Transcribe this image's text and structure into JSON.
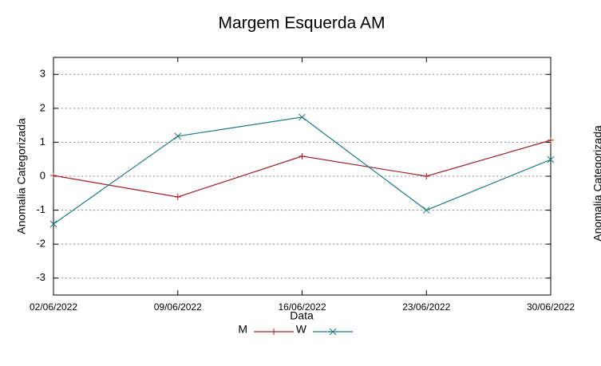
{
  "chart_data": {
    "type": "line",
    "title": "Margem Esquerda AM",
    "xlabel": "Data",
    "ylabel": "Anomalia Categorizada",
    "x": [
      "02/06/2022",
      "09/06/2022",
      "16/06/2022",
      "23/06/2022",
      "30/06/2022"
    ],
    "xlim": [
      "02/06/2022",
      "30/06/2022"
    ],
    "xticks": [
      "02/06/2022",
      "09/06/2022",
      "16/06/2022",
      "23/06/2022",
      "30/06/2022"
    ],
    "ylim": [
      -3.5,
      3.5
    ],
    "yticks": [
      -3,
      -2,
      -1,
      0,
      1,
      2,
      3
    ],
    "grid": true,
    "legend": "bottom",
    "series": [
      {
        "name": "M",
        "color": "#a0202a",
        "marker": "+",
        "values": [
          0.02,
          -0.61,
          0.59,
          0.0,
          1.06
        ]
      },
      {
        "name": "W",
        "color": "#1a7a80",
        "marker": "x",
        "values": [
          -1.41,
          1.18,
          1.74,
          -1.0,
          0.49
        ]
      }
    ]
  },
  "clipped_label": "Anomalia Categorizada"
}
